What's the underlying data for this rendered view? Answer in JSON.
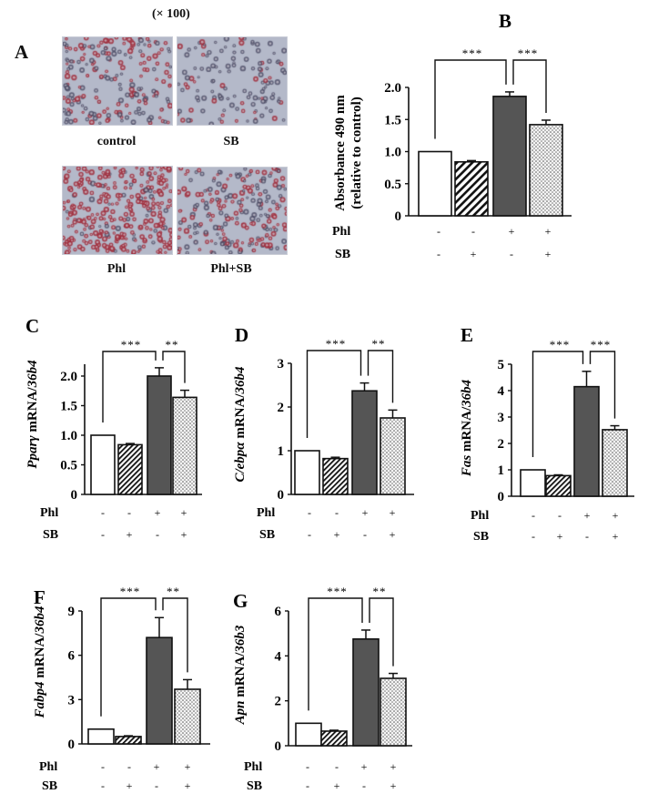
{
  "panel_a": {
    "letter": "A",
    "magnification": "(× 100)",
    "images": [
      {
        "label": "control",
        "density": 0.55,
        "red": 0.55
      },
      {
        "label": "SB",
        "density": 0.35,
        "red": 0.25
      },
      {
        "label": "Phl",
        "density": 0.85,
        "red": 0.9
      },
      {
        "label": "Phl+SB",
        "density": 0.6,
        "red": 0.55
      }
    ]
  },
  "treatments": {
    "row1_label": "Phl",
    "row2_label": "SB",
    "phl": [
      "-",
      "-",
      "+",
      "+"
    ],
    "sb": [
      "-",
      "+",
      "-",
      "+"
    ]
  },
  "colors": {
    "control": "#ffffff",
    "sb": "#ffffff",
    "phl": "#555555",
    "phl_sb": "#f2f2f2",
    "outline": "#111111"
  },
  "chart_data": [
    {
      "panel": "B",
      "type": "bar",
      "ylabel": "Absorbance 490 nm (relative to control)",
      "ylabel_line1": "Absorbance 490 nm",
      "ylabel_line2": "(relative to control)",
      "categories": [
        "control",
        "SB",
        "Phl",
        "Phl+SB"
      ],
      "values": [
        1.0,
        0.84,
        1.86,
        1.42
      ],
      "errors": [
        0.0,
        0.02,
        0.07,
        0.07
      ],
      "ylim": [
        0,
        2.0
      ],
      "yticks": [
        "0",
        "0.5",
        "1.0",
        "1.5",
        "2.0"
      ],
      "significance": [
        {
          "pair": [
            "control",
            "Phl"
          ],
          "label": "***"
        },
        {
          "pair": [
            "Phl",
            "Phl+SB"
          ],
          "label": "***"
        }
      ]
    },
    {
      "panel": "C",
      "type": "bar",
      "ylabel_gene": "Pparγ",
      "ylabel_rest": " mRNA/",
      "ylabel_ref": "36b4",
      "categories": [
        "control",
        "SB",
        "Phl",
        "Phl+SB"
      ],
      "values": [
        1.0,
        0.84,
        2.0,
        1.64
      ],
      "errors": [
        0.0,
        0.02,
        0.14,
        0.12
      ],
      "ylim": [
        0,
        2.0
      ],
      "yticks": [
        "0",
        "0.5",
        "1.0",
        "1.5",
        "2.0"
      ],
      "significance": [
        {
          "pair": [
            "control",
            "Phl"
          ],
          "label": "***"
        },
        {
          "pair": [
            "Phl",
            "Phl+SB"
          ],
          "label": "**"
        }
      ]
    },
    {
      "panel": "D",
      "type": "bar",
      "ylabel_gene": "C/ebpα",
      "ylabel_rest": " mRNA/",
      "ylabel_ref": "36b4",
      "categories": [
        "control",
        "SB",
        "Phl",
        "Phl+SB"
      ],
      "values": [
        1.0,
        0.82,
        2.37,
        1.75
      ],
      "errors": [
        0.0,
        0.03,
        0.18,
        0.18
      ],
      "ylim": [
        0,
        3
      ],
      "yticks": [
        "0",
        "1",
        "2",
        "3"
      ],
      "significance": [
        {
          "pair": [
            "control",
            "Phl"
          ],
          "label": "***"
        },
        {
          "pair": [
            "Phl",
            "Phl+SB"
          ],
          "label": "**"
        }
      ]
    },
    {
      "panel": "E",
      "type": "bar",
      "ylabel_gene": "Fas",
      "ylabel_rest": " mRNA/",
      "ylabel_ref": "36b4",
      "categories": [
        "control",
        "SB",
        "Phl",
        "Phl+SB"
      ],
      "values": [
        1.0,
        0.78,
        4.15,
        2.52
      ],
      "errors": [
        0.0,
        0.03,
        0.58,
        0.15
      ],
      "ylim": [
        0,
        5
      ],
      "yticks": [
        "0",
        "1",
        "2",
        "3",
        "4",
        "5"
      ],
      "significance": [
        {
          "pair": [
            "control",
            "Phl"
          ],
          "label": "***"
        },
        {
          "pair": [
            "Phl",
            "Phl+SB"
          ],
          "label": "***"
        }
      ]
    },
    {
      "panel": "F",
      "type": "bar",
      "ylabel_gene": "Fabp4",
      "ylabel_rest": " mRNA/",
      "ylabel_ref": "36b4",
      "categories": [
        "control",
        "SB",
        "Phl",
        "Phl+SB"
      ],
      "values": [
        1.0,
        0.5,
        7.2,
        3.7
      ],
      "errors": [
        0.0,
        0.05,
        1.35,
        0.65
      ],
      "ylim": [
        0,
        9
      ],
      "yticks": [
        "0",
        "3",
        "6",
        "9"
      ],
      "significance": [
        {
          "pair": [
            "control",
            "Phl"
          ],
          "label": "***"
        },
        {
          "pair": [
            "Phl",
            "Phl+SB"
          ],
          "label": "**"
        }
      ]
    },
    {
      "panel": "G",
      "type": "bar",
      "ylabel_gene": "Apn",
      "ylabel_rest": " mRNA/",
      "ylabel_ref": "36b3",
      "categories": [
        "control",
        "SB",
        "Phl",
        "Phl+SB"
      ],
      "values": [
        1.0,
        0.65,
        4.75,
        3.0
      ],
      "errors": [
        0.0,
        0.04,
        0.4,
        0.22
      ],
      "ylim": [
        0,
        6
      ],
      "yticks": [
        "0",
        "2",
        "4",
        "6"
      ],
      "significance": [
        {
          "pair": [
            "control",
            "Phl"
          ],
          "label": "***"
        },
        {
          "pair": [
            "Phl",
            "Phl+SB"
          ],
          "label": "**"
        }
      ]
    }
  ]
}
